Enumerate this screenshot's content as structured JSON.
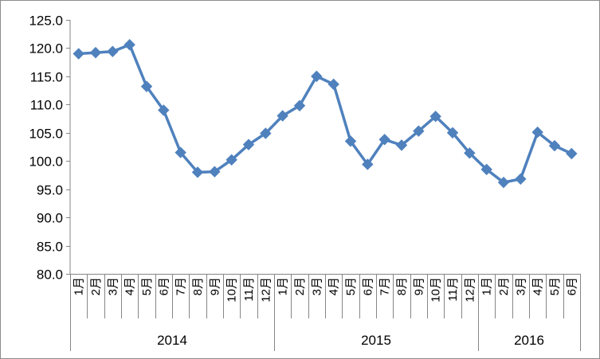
{
  "chart_data": {
    "type": "line",
    "title": "",
    "xlabel": "",
    "ylabel": "",
    "ylim": [
      80.0,
      125.0
    ],
    "y_ticks": [
      "80.0",
      "85.0",
      "90.0",
      "95.0",
      "100.0",
      "105.0",
      "110.0",
      "115.0",
      "120.0",
      "125.0"
    ],
    "grid": false,
    "legend": "none",
    "line_color": "#4f81bd",
    "year_groups": [
      {
        "label": "2014",
        "count": 12
      },
      {
        "label": "2015",
        "count": 12
      },
      {
        "label": "2016",
        "count": 6
      }
    ],
    "categories": [
      "1月",
      "2月",
      "3月",
      "4月",
      "5月",
      "6月",
      "7月",
      "8月",
      "9月",
      "10月",
      "11月",
      "12月",
      "1月",
      "2月",
      "3月",
      "4月",
      "5月",
      "6月",
      "7月",
      "8月",
      "9月",
      "10月",
      "11月",
      "12月",
      "1月",
      "2月",
      "3月",
      "4月",
      "5月",
      "6月"
    ],
    "values": [
      119.0,
      119.2,
      119.4,
      120.6,
      113.2,
      109.0,
      101.5,
      98.0,
      98.1,
      100.2,
      102.9,
      104.9,
      108.0,
      109.8,
      115.0,
      113.6,
      103.5,
      99.4,
      103.8,
      102.8,
      105.3,
      107.9,
      105.0,
      101.4,
      98.5,
      96.2,
      96.8,
      105.1,
      102.7,
      101.3
    ]
  }
}
